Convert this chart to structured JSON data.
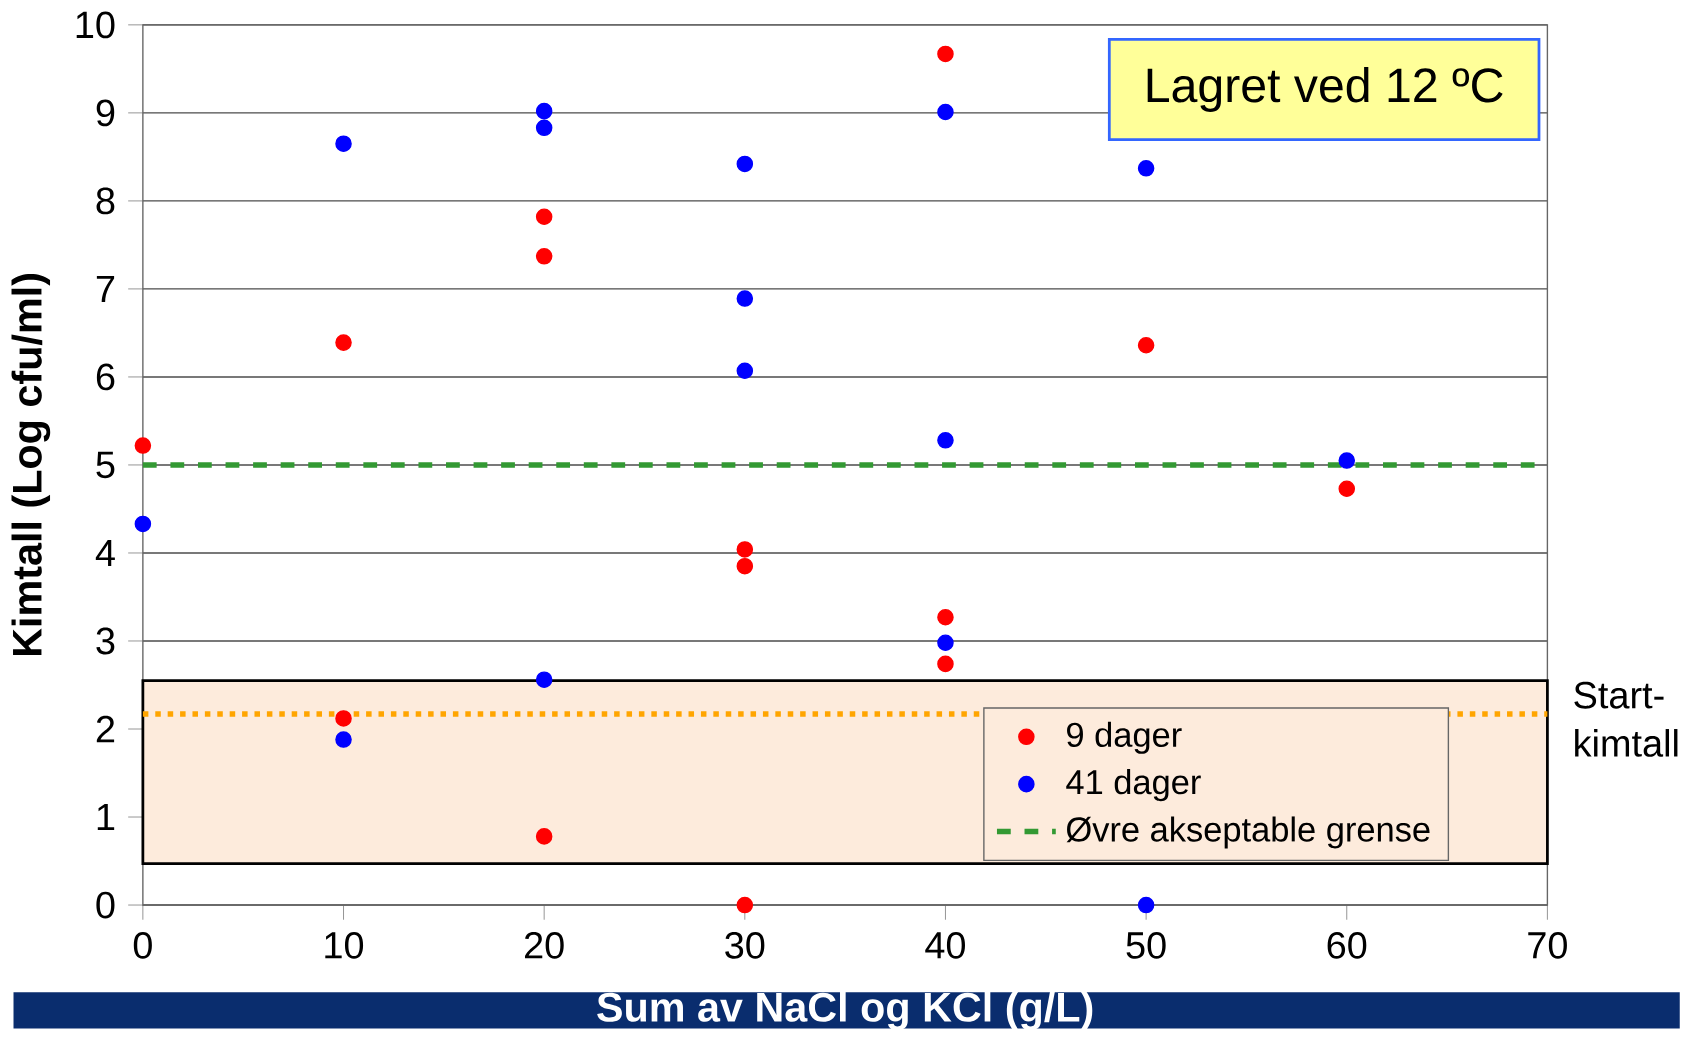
{
  "chart_data": {
    "type": "scatter",
    "xlabel": "Sum av NaCl og KCl (g/L)",
    "ylabel": "Kimtall (Log cfu/ml)",
    "annotations": [
      "Lagret ved 12 ºC"
    ],
    "series": [
      {
        "name": "9 dager",
        "color": "#ff0000",
        "x": [
          0,
          10,
          10,
          20,
          20,
          20,
          30,
          30,
          30,
          40,
          40,
          40,
          50,
          60
        ],
        "values": [
          5.22,
          6.39,
          2.12,
          7.82,
          7.37,
          0.78,
          4.04,
          3.85,
          0,
          9.67,
          3.27,
          2.74,
          6.36,
          4.73
        ]
      },
      {
        "name": "41 dager",
        "color": "#0000ff",
        "x": [
          0,
          10,
          10,
          20,
          20,
          20,
          30,
          30,
          30,
          40,
          40,
          40,
          50,
          50,
          60
        ],
        "values": [
          4.33,
          8.65,
          1.88,
          9.02,
          8.83,
          2.56,
          8.42,
          6.89,
          6.07,
          9.01,
          5.28,
          2.98,
          8.37,
          0,
          5.05
        ]
      }
    ],
    "ref_lines": [
      {
        "axis": "y",
        "value": 5,
        "label": "Øvre akseptable grense",
        "color": "#339933",
        "line_style": "dashed"
      },
      {
        "axis": "y",
        "value": 2.17,
        "color": "#ffa500",
        "line_style": "dotted"
      }
    ],
    "bands": [
      {
        "axis": "y",
        "from": 0.47,
        "to": 2.55,
        "label": "Start-kimtall",
        "color": "#fdebdc"
      }
    ],
    "xlim": [
      0,
      70
    ],
    "xticks": [
      0,
      10,
      20,
      30,
      40,
      50,
      60,
      70
    ],
    "ylim": [
      0,
      10
    ],
    "yticks": [
      0,
      1,
      2,
      3,
      4,
      5,
      6,
      7,
      8,
      9,
      10
    ],
    "grid": "y",
    "legend": "bottom right",
    "marker": "circle"
  }
}
